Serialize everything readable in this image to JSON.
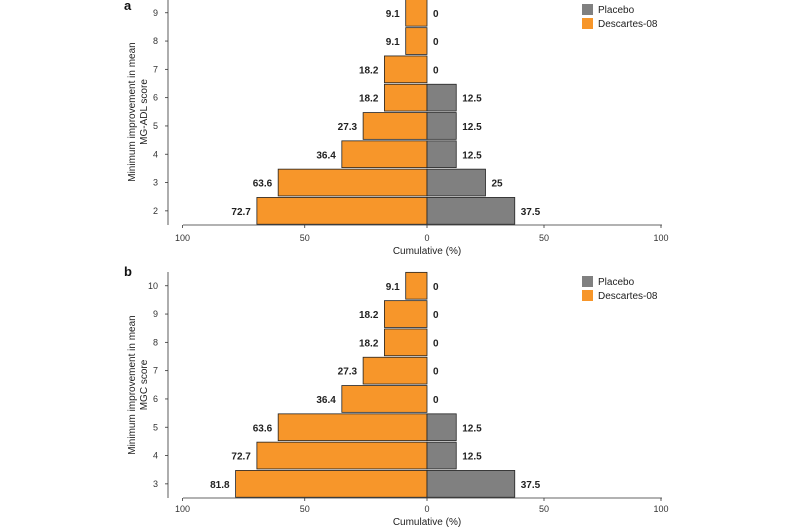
{
  "colors": {
    "placebo": "#808080",
    "descartes": "#f7962a",
    "axis": "#333333",
    "bar_stroke": "#222222"
  },
  "chart_data": [
    {
      "type": "bar",
      "orientation": "horizontal-butterfly",
      "panel_label": "a",
      "categories": [
        "2",
        "3",
        "4",
        "5",
        "6",
        "7",
        "8",
        "9"
      ],
      "series": [
        {
          "name": "Descartes-08",
          "side": "left",
          "values": [
            72.7,
            63.6,
            36.4,
            27.3,
            18.2,
            18.2,
            9.1,
            9.1
          ],
          "labels": [
            "72.7",
            "63.6",
            "36.4",
            "27.3",
            "18.2",
            "18.2",
            "9.1",
            "9.1"
          ]
        },
        {
          "name": "Placebo",
          "side": "right",
          "values": [
            37.5,
            25,
            12.5,
            12.5,
            12.5,
            0,
            0,
            0
          ],
          "labels": [
            "37.5",
            "25",
            "12.5",
            "12.5",
            "12.5",
            "0",
            "0",
            "0"
          ]
        }
      ],
      "legend": [
        "Placebo",
        "Descartes-08"
      ],
      "xlabel": "Cumulative (%)",
      "ylabel_lines": [
        "Minimum improvement in mean",
        "MG-ADL score"
      ],
      "xticks": [
        "100",
        "50",
        "0",
        "50",
        "100"
      ],
      "xlim": [
        -100,
        100
      ]
    },
    {
      "type": "bar",
      "orientation": "horizontal-butterfly",
      "panel_label": "b",
      "categories": [
        "3",
        "4",
        "5",
        "6",
        "7",
        "8",
        "9",
        "10"
      ],
      "series": [
        {
          "name": "Descartes-08",
          "side": "left",
          "values": [
            81.8,
            72.7,
            63.6,
            36.4,
            27.3,
            18.2,
            18.2,
            9.1
          ],
          "labels": [
            "81.8",
            "72.7",
            "63.6",
            "36.4",
            "27.3",
            "18.2",
            "18.2",
            "9.1"
          ]
        },
        {
          "name": "Placebo",
          "side": "right",
          "values": [
            37.5,
            12.5,
            12.5,
            0,
            0,
            0,
            0,
            0
          ],
          "labels": [
            "37.5",
            "12.5",
            "12.5",
            "0",
            "0",
            "0",
            "0",
            "0"
          ]
        }
      ],
      "legend": [
        "Placebo",
        "Descartes-08"
      ],
      "xlabel": "Cumulative (%)",
      "ylabel_lines": [
        "Minimum improvement in mean",
        "MGC score"
      ],
      "xticks": [
        "100",
        "50",
        "0",
        "50",
        "100"
      ],
      "xlim": [
        -100,
        100
      ]
    }
  ]
}
